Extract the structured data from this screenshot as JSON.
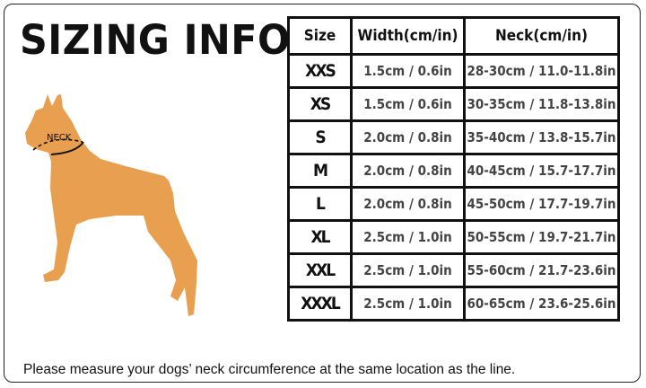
{
  "title": "SIZING INFO",
  "dog_label": "NECK",
  "dog_color": "#E89F50",
  "table": {
    "headers": [
      "Size",
      "Width(cm/in)",
      "Neck(cm/in)"
    ],
    "rows": [
      [
        "XXS",
        "1.5cm / 0.6in",
        "28-30cm / 11.0-11.8in"
      ],
      [
        "XS",
        "1.5cm / 0.6in",
        "30-35cm / 11.8-13.8in"
      ],
      [
        "S",
        "2.0cm / 0.8in",
        "35-40cm / 13.8-15.7in"
      ],
      [
        "M",
        "2.0cm / 0.8in",
        "40-45cm / 15.7-17.7in"
      ],
      [
        "L",
        "2.0cm / 0.8in",
        "45-50cm / 17.7-19.7in"
      ],
      [
        "XL",
        "2.5cm / 1.0in",
        "50-55cm / 19.7-21.7in"
      ],
      [
        "XXL",
        "2.5cm / 1.0in",
        "55-60cm / 21.7-23.6in"
      ],
      [
        "XXXL",
        "2.5cm / 1.0in",
        "60-65cm / 23.6-25.6in"
      ]
    ]
  },
  "note": "Please measure your dogs’  neck circumference at the same location as the line."
}
